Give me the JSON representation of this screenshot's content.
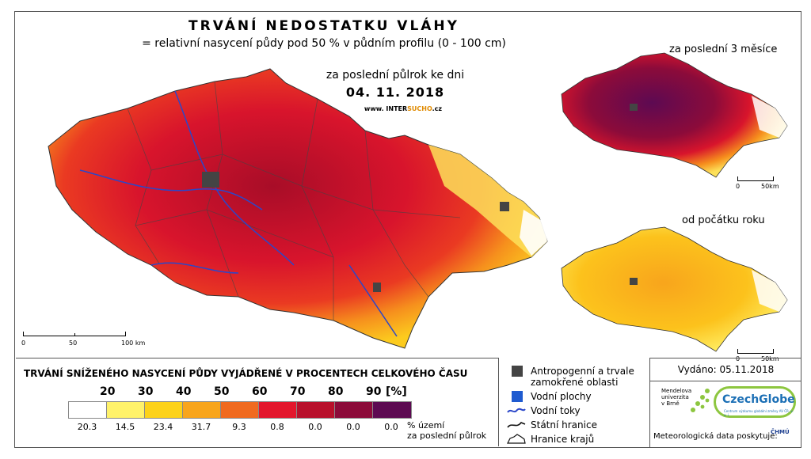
{
  "header": {
    "title": "TRVÁNÍ NEDOSTATKU VLÁHY",
    "subtitle": "= relativní nasycení půdy pod 50 % v půdním profilu (0 - 100 cm)",
    "period_label": "za poslední půlrok ke dni",
    "date": "04. 11. 2018",
    "website_prefix": "www. INTER",
    "website_highlight": "SUCHO",
    "website_suffix": ".cz"
  },
  "insets": {
    "last3_label": "za poslední 3 měsíce",
    "ytd_label": "od počátku roku"
  },
  "scalebars": {
    "main": {
      "t0": "0",
      "t1": "50",
      "t2": "100 km"
    },
    "inset_top": {
      "t0": "0",
      "t1": "50km"
    },
    "inset_bottom": {
      "t0": "0",
      "t1": "50km"
    }
  },
  "legend": {
    "title": "TRVÁNÍ SNÍŽENÉHO NASYCENÍ PŮDY VYJÁDŘENÉ V PROCENTECH CELKOVÉHO ČASU",
    "thresholds": [
      "20",
      "30",
      "40",
      "50",
      "60",
      "70",
      "80",
      "90"
    ],
    "unit": "[%]",
    "colors": [
      "#ffffff",
      "#fff26a",
      "#fcd21a",
      "#f8a51c",
      "#f06a1f",
      "#e3162c",
      "#b8102b",
      "#8c0b3a",
      "#5d0a52"
    ],
    "percentages": [
      "20.3",
      "14.5",
      "23.4",
      "31.7",
      "9.3",
      "0.8",
      "0.0",
      "0.0",
      "0.0"
    ],
    "pct_note_line1": "% území",
    "pct_note_line2": "za poslední půlrok"
  },
  "symbols": {
    "anthropogenic": "Antropogenní a trvale zamokřené oblasti",
    "water": "Vodní plochy",
    "rivers": "Vodní toky",
    "state_border": "Státní hranice",
    "regions": "Hranice krajů"
  },
  "issued": "Vydáno: 05.11.2018",
  "logos": {
    "mendel_l1": "Mendelova",
    "mendel_l2": "univerzita",
    "mendel_l3": "v Brně",
    "czechglobe": "CzechGlobe",
    "czechglobe_sub": "Centrum výzkumu globální změny AV ČR, v. v. i.",
    "meteo": "Meteorologická data poskytuje:",
    "chmu": "ČHMÚ"
  }
}
